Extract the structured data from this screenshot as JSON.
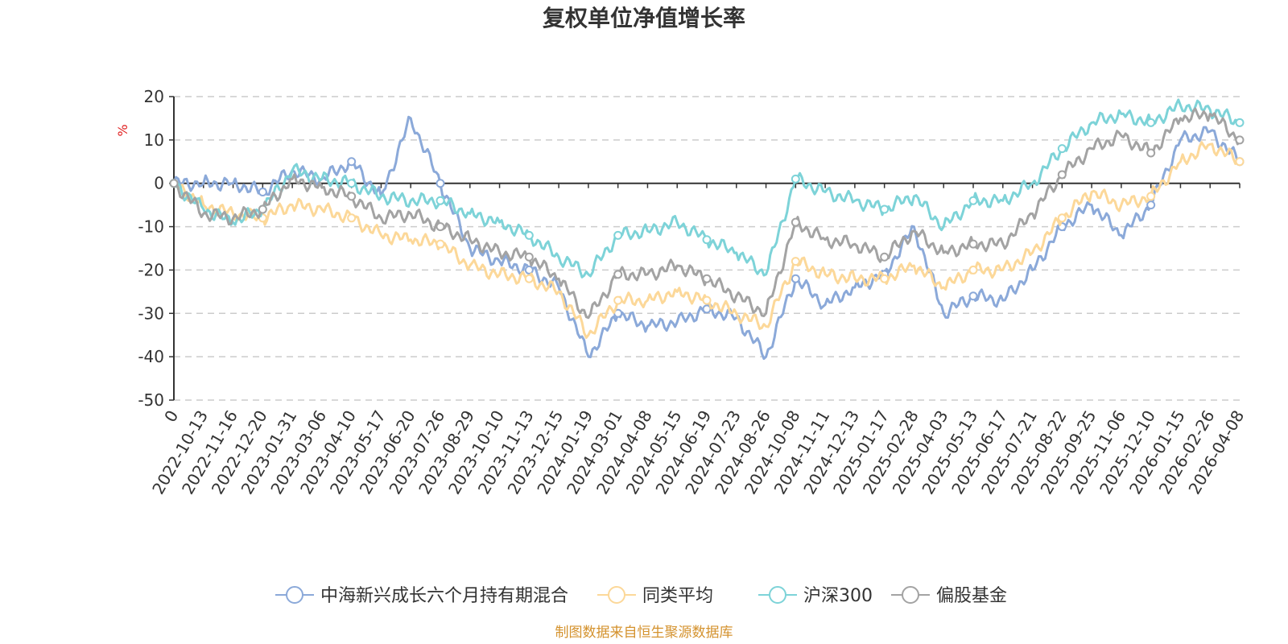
{
  "chart_data": {
    "type": "line",
    "title": "复权单位净值增长率",
    "ylabel": "%",
    "ylim": [
      -50,
      20
    ],
    "yticks": [
      "20",
      "10",
      "0",
      "-10",
      "-20",
      "-30",
      "-40",
      "-50"
    ],
    "categories": [
      "0",
      "2022-10-13",
      "2022-11-16",
      "2022-12-20",
      "2023-01-31",
      "2023-03-06",
      "2023-04-10",
      "2023-05-17",
      "2023-06-20",
      "2023-07-26",
      "2023-08-29",
      "2023-10-10",
      "2023-11-13",
      "2023-12-15",
      "2024-01-19",
      "2024-03-01",
      "2024-04-08",
      "2024-05-15",
      "2024-06-19",
      "2024-07-23",
      "2024-08-26",
      "2024-10-08",
      "2024-11-11",
      "2024-12-13",
      "2025-01-17",
      "2025-02-28",
      "2025-04-03",
      "2025-05-13",
      "2025-06-17",
      "2025-07-21",
      "2025-08-22",
      "2025-09-25",
      "2025-11-06",
      "2025-12-10",
      "2026-01-15",
      "2026-02-26",
      "2026-04-08"
    ],
    "series": [
      {
        "name": "中海新兴成长六个月持有期混合",
        "color": "#8ba9d9",
        "values": [
          0,
          0,
          0,
          -2,
          3,
          1,
          5,
          -3,
          15,
          0,
          -15,
          -18,
          -20,
          -24,
          -40,
          -30,
          -33,
          -32,
          -29,
          -31,
          -40,
          -22,
          -28,
          -24,
          -21,
          -10,
          -30,
          -26,
          -27,
          -20,
          -10,
          -5,
          -12,
          -5,
          10,
          12,
          5
        ]
      },
      {
        "name": "同类平均",
        "color": "#fcd899",
        "values": [
          0,
          -5,
          -7,
          -8,
          -5,
          -6,
          -8,
          -12,
          -13,
          -14,
          -19,
          -21,
          -22,
          -25,
          -35,
          -27,
          -27,
          -25,
          -27,
          -30,
          -33,
          -18,
          -21,
          -22,
          -22,
          -19,
          -24,
          -20,
          -20,
          -16,
          -8,
          -2,
          -5,
          -3,
          5,
          9,
          5
        ]
      },
      {
        "name": "沪深300",
        "color": "#7dd3d8",
        "values": [
          0,
          -6,
          -9,
          -6,
          3,
          1,
          0,
          -3,
          -4,
          -4,
          -7,
          -9,
          -12,
          -17,
          -21,
          -12,
          -11,
          -9,
          -13,
          -16,
          -21,
          1,
          -2,
          -4,
          -6,
          -3,
          -10,
          -4,
          -4,
          0,
          8,
          14,
          16,
          14,
          18,
          17,
          14
        ]
      },
      {
        "name": "偏股基金",
        "color": "#a3a3a3",
        "values": [
          0,
          -7,
          -8,
          -6,
          1,
          -1,
          -3,
          -8,
          -7,
          -10,
          -13,
          -16,
          -17,
          -22,
          -31,
          -21,
          -21,
          -19,
          -22,
          -26,
          -30,
          -9,
          -13,
          -14,
          -17,
          -11,
          -16,
          -14,
          -14,
          -7,
          2,
          8,
          11,
          7,
          15,
          16,
          10
        ]
      }
    ],
    "legend_position": "bottom",
    "grid": true
  },
  "source_note": "制图数据来自恒生聚源数据库"
}
